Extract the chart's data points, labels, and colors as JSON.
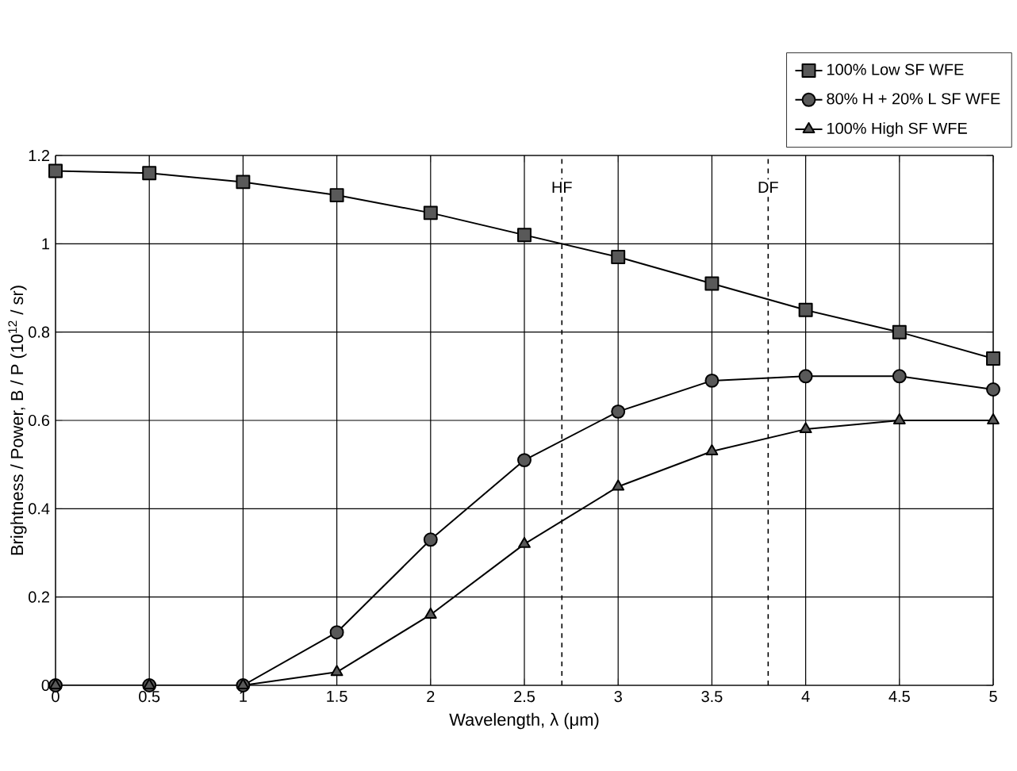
{
  "chart_data": {
    "type": "line",
    "xlabel": "Wavelength, λ (μm)",
    "ylabel": "Brightness / Power, B / P (10$^{12}$ / sr)",
    "x": [
      0,
      0.5,
      1,
      1.5,
      2,
      2.5,
      3,
      3.5,
      4,
      4.5,
      5
    ],
    "series": [
      {
        "name": "100% Low SF WFE",
        "color": "#000000",
        "marker": "square",
        "values": [
          1.165,
          1.16,
          1.14,
          1.11,
          1.07,
          1.02,
          0.97,
          0.91,
          0.85,
          0.8,
          0.74
        ]
      },
      {
        "name": "80% H + 20% L SF WFE",
        "color": "#000000",
        "marker": "circle",
        "values": [
          0,
          0,
          0,
          0.12,
          0.33,
          0.51,
          0.62,
          0.69,
          0.7,
          0.7,
          0.67
        ]
      },
      {
        "name": "100% High SF WFE",
        "color": "#000000",
        "marker": "triangle",
        "values": [
          0,
          0,
          0,
          0.03,
          0.16,
          0.32,
          0.45,
          0.53,
          0.58,
          0.6,
          0.6
        ]
      }
    ],
    "xlim": [
      0,
      5
    ],
    "ylim": [
      0,
      1.2
    ],
    "xticks": [
      0,
      0.5,
      1,
      1.5,
      2,
      2.5,
      3,
      3.5,
      4,
      4.5,
      5
    ],
    "yticks": [
      0,
      0.2,
      0.4,
      0.6,
      0.8,
      1,
      1.2
    ],
    "ref_lines": [
      {
        "axis": "x",
        "value": 2.7,
        "label": "HF",
        "line_style": "dashed"
      },
      {
        "axis": "x",
        "value": 3.8,
        "label": "DF",
        "line_style": "dashed"
      }
    ],
    "grid": true,
    "legend": "top right",
    "line_style": "solid"
  }
}
